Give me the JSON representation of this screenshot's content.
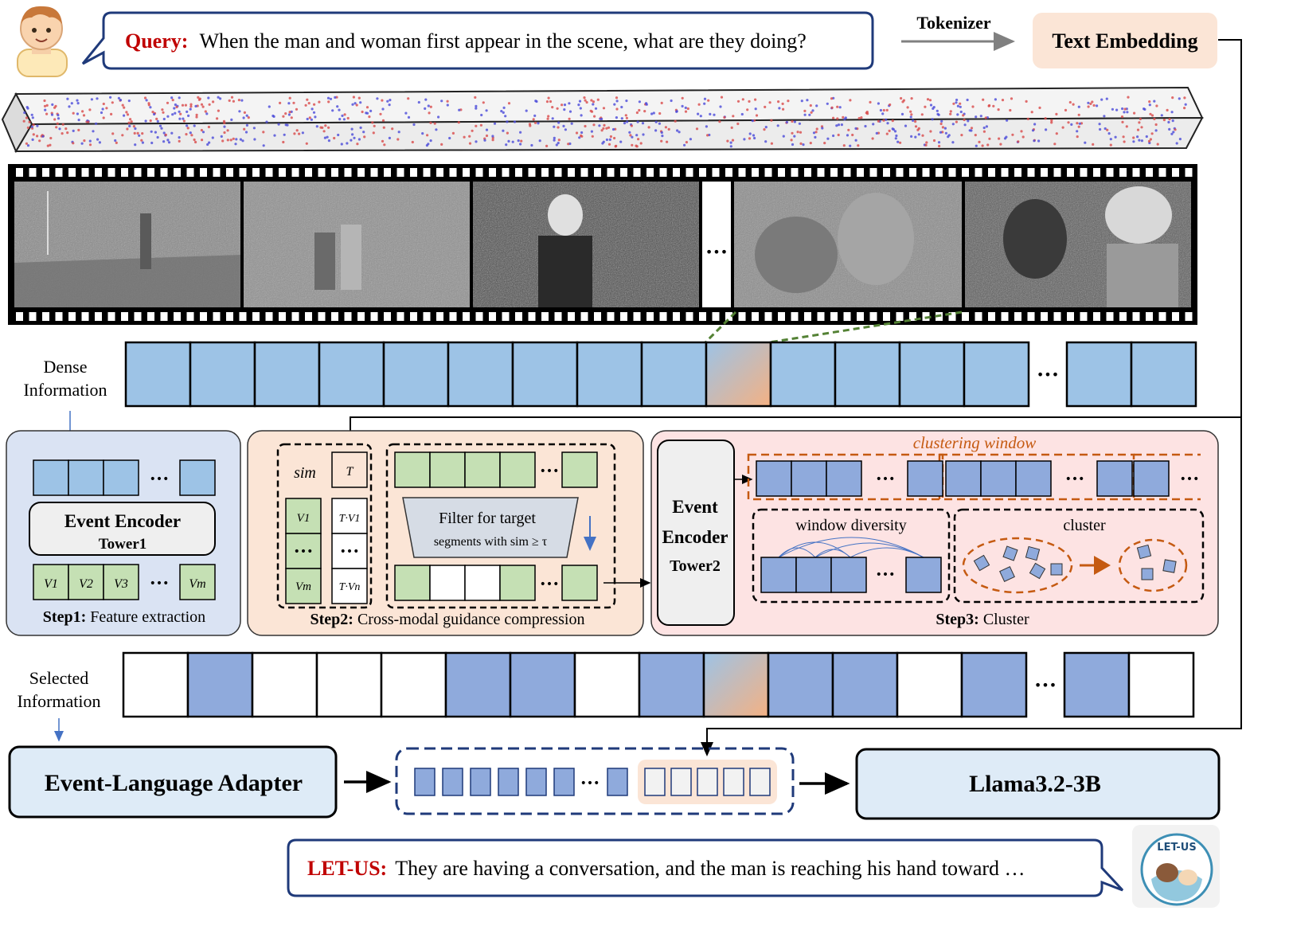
{
  "query": {
    "label": "Query:",
    "text": "When the man and woman first appear in the scene, what are they doing?"
  },
  "tokenizer_label": "Tokenizer",
  "text_embedding_label": "Text Embedding",
  "ellipsis": "…",
  "ellipsis_dots": "•••",
  "dense_info": {
    "line1": "Dense",
    "line2": "Information"
  },
  "selected_info": {
    "line1": "Selected",
    "line2": "Information"
  },
  "step1": {
    "encoder_line1": "Event Encoder",
    "encoder_line2": "Tower1",
    "v1": "V1",
    "v2": "V2",
    "v3": "V3",
    "vm": "Vm",
    "caption_bold": "Step1:",
    "caption_rest": " Feature extraction"
  },
  "step2": {
    "sim_label": "sim",
    "t_label": "T",
    "tv1_label": "T·V1",
    "tvn_label": "T·Vn",
    "v1_label": "V1",
    "vm_label": "Vm",
    "filter_line1": "Filter for target",
    "filter_line2": "segments with sim ≥ τ",
    "caption_bold": "Step2:",
    "caption_rest": " Cross-modal guidance compression"
  },
  "step3": {
    "encoder_line1": "Event",
    "encoder_line2": "Encoder",
    "encoder_line3": "Tower2",
    "clustering_window": "clustering window",
    "window_diversity": "window diversity",
    "cluster": "cluster",
    "caption_bold": "Step3:",
    "caption_rest": " Cluster"
  },
  "adapter_label": "Event-Language Adapter",
  "llm_label": "Llama3.2-3B",
  "answer": {
    "label": "LET-US:",
    "text": "They are having a conversation, and the man is reaching his hand toward …"
  },
  "logo_text": "LET-US",
  "dense_sequence": [
    "blue",
    "blue",
    "blue",
    "blue",
    "blue",
    "blue",
    "blue",
    "blue",
    "blue",
    "grad",
    "blue",
    "blue",
    "blue",
    "blue",
    "gap",
    "blue",
    "blue"
  ],
  "selected_sequence": [
    "white",
    "blue",
    "white",
    "white",
    "white",
    "blue",
    "blue",
    "white",
    "blue",
    "grad",
    "blue",
    "blue",
    "white",
    "blue",
    "gap",
    "blue",
    "white"
  ],
  "colors": {
    "query_red": "#c00000",
    "speech_border": "#1f3a7a",
    "dense_blue": "#9dc3e6",
    "event_blue": "#8faadc",
    "feature_green": "#c5e0b4",
    "step1_bg": "#dae3f3",
    "step2_bg": "#fbe5d6",
    "step3_bg": "#fde3e3",
    "text_embed_bg": "#fbe5d6",
    "adapter_bg": "#deebf7",
    "orange_dash": "#c55a11",
    "green_dash": "#548235"
  }
}
